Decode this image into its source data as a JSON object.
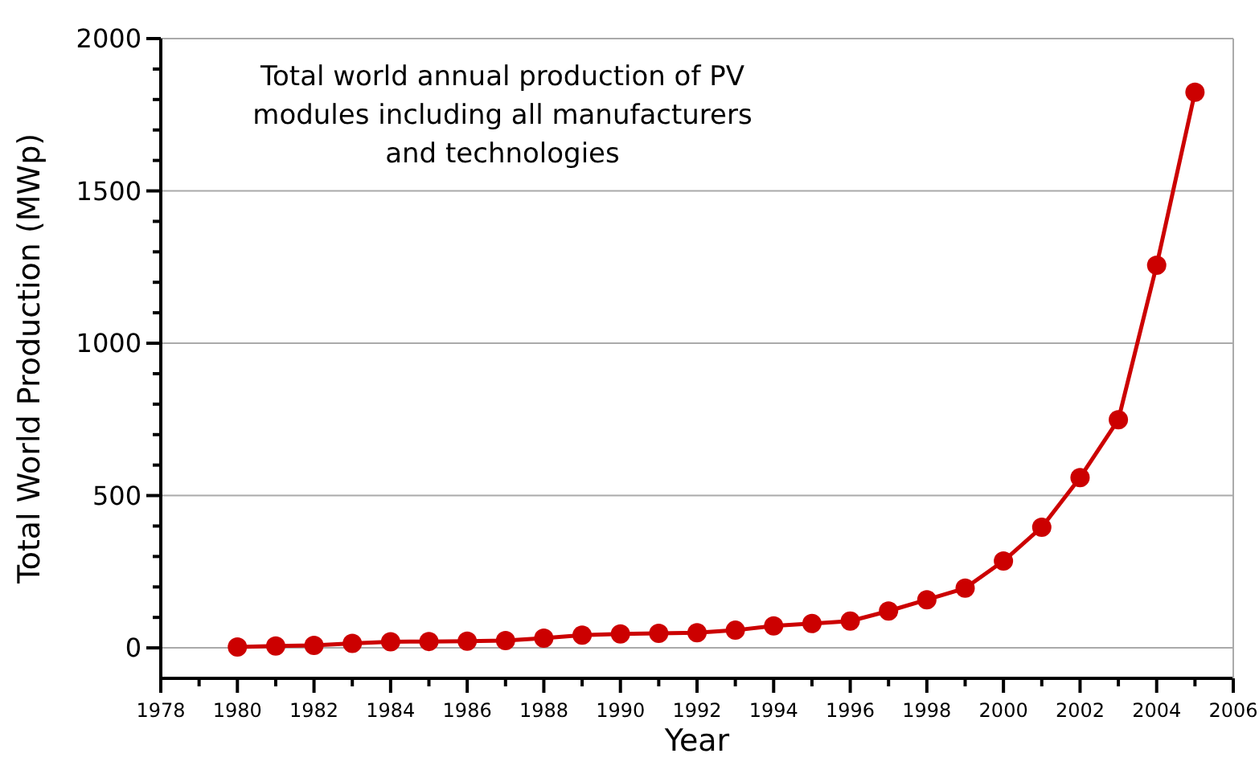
{
  "chart_data": {
    "type": "line",
    "xlabel": "Year",
    "ylabel": "Total World Production (MWp)",
    "annotations": [
      "Total world annual production of PV modules including all manufacturers and technologies"
    ],
    "x": [
      1980,
      1981,
      1982,
      1983,
      1984,
      1985,
      1986,
      1987,
      1988,
      1989,
      1990,
      1991,
      1992,
      1993,
      1994,
      1995,
      1996,
      1997,
      1998,
      1999,
      2000,
      2001,
      2002,
      2003,
      2004,
      2005
    ],
    "series": [
      {
        "color": "#cc0000",
        "values": [
          3,
          6,
          8,
          15,
          20,
          21,
          22,
          24,
          32,
          42,
          46,
          48,
          50,
          58,
          72,
          80,
          88,
          121,
          158,
          196,
          285,
          396,
          559,
          749,
          1256,
          1824
        ]
      }
    ],
    "xlim": [
      1978,
      2006
    ],
    "xticks": [
      1978,
      {
        "value": 1979,
        "label": null
      },
      1980,
      {
        "value": 1981,
        "label": null
      },
      1982,
      {
        "value": 1983,
        "label": null
      },
      1984,
      {
        "value": 1985,
        "label": null
      },
      1986,
      {
        "value": 1987,
        "label": null
      },
      1988,
      {
        "value": 1989,
        "label": null
      },
      1990,
      {
        "value": 1991,
        "label": null
      },
      1992,
      {
        "value": 1993,
        "label": null
      },
      1994,
      {
        "value": 1995,
        "label": null
      },
      1996,
      {
        "value": 1997,
        "label": null
      },
      1998,
      {
        "value": 1999,
        "label": null
      },
      2000,
      {
        "value": 2001,
        "label": null
      },
      2002,
      {
        "value": 2003,
        "label": null
      },
      2004,
      {
        "value": 2005,
        "label": null
      },
      2006
    ],
    "ylim": [
      -100,
      2000
    ],
    "yticks": [
      0,
      {
        "value": 100,
        "label": null
      },
      {
        "value": 200,
        "label": null
      },
      {
        "value": 300,
        "label": null
      },
      {
        "value": 400,
        "label": null
      },
      500,
      {
        "value": 600,
        "label": null
      },
      {
        "value": 700,
        "label": null
      },
      {
        "value": 800,
        "label": null
      },
      {
        "value": 900,
        "label": null
      },
      1000,
      {
        "value": 1100,
        "label": null
      },
      {
        "value": 1200,
        "label": null
      },
      {
        "value": 1300,
        "label": null
      },
      {
        "value": 1400,
        "label": null
      },
      1500,
      {
        "value": 1600,
        "label": null
      },
      {
        "value": 1700,
        "label": null
      },
      {
        "value": 1800,
        "label": null
      },
      {
        "value": 1900,
        "label": null
      },
      2000
    ],
    "grid": "y",
    "legend": false,
    "marker": "circle",
    "line_style": "solid"
  }
}
